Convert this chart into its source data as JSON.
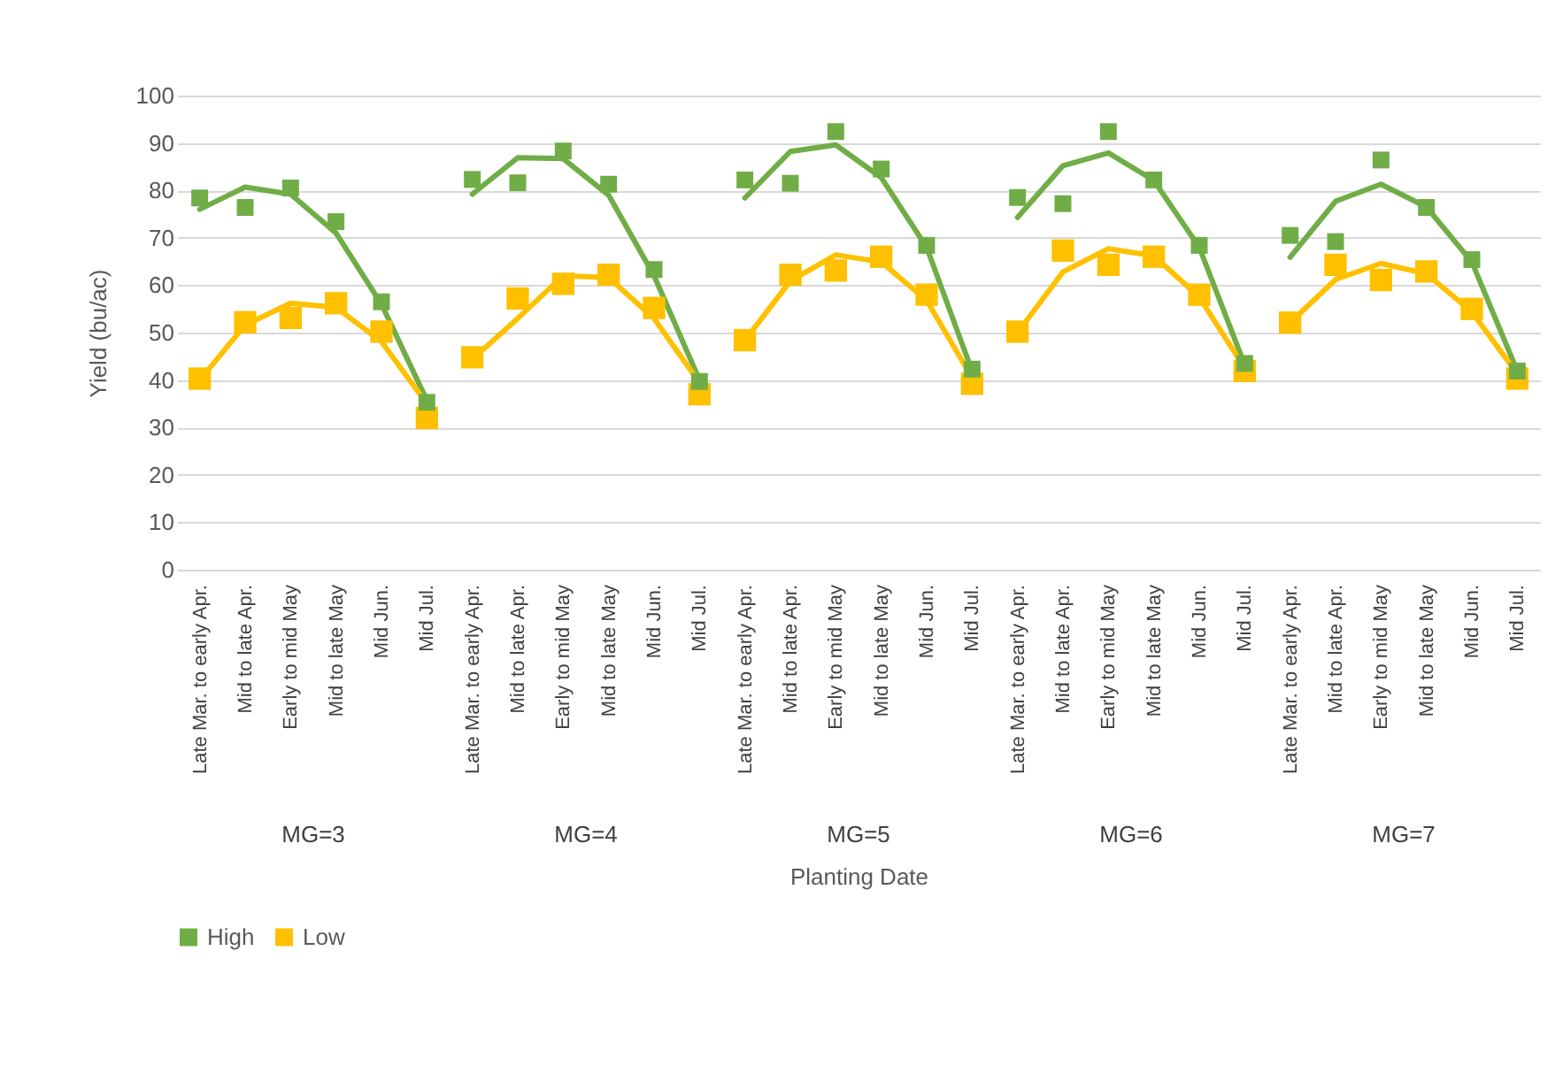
{
  "chart_data": {
    "type": "scatter",
    "xlabel": "Planting Date",
    "ylabel": "Yield (bu/ac)",
    "categories": [
      "Late Mar. to early Apr.",
      "Mid to late Apr.",
      "Early to mid May",
      "Mid to late May",
      "Mid Jun.",
      "Mid Jul.",
      "Late Mar. to early Apr.",
      "Mid to late Apr.",
      "Early to mid May",
      "Mid to late May",
      "Mid Jun.",
      "Mid Jul.",
      "Late Mar. to early Apr.",
      "Mid to late Apr.",
      "Early to mid May",
      "Mid to late May",
      "Mid Jun.",
      "Mid Jul.",
      "Late Mar. to early Apr.",
      "Mid to late Apr.",
      "Early to mid May",
      "Mid to late May",
      "Mid Jun.",
      "Mid Jul.",
      "Late Mar. to early Apr.",
      "Mid to late Apr.",
      "Early to mid May",
      "Mid to late May",
      "Mid Jun.",
      "Mid Jul."
    ],
    "annotations": [
      "MG=3",
      "MG=4",
      "MG=5",
      "MG=6",
      "MG=7"
    ],
    "series": [
      {
        "type": "line",
        "marker": "none",
        "color": "#70ad47",
        "values": [
          76,
          80.7,
          79.2,
          71,
          56,
          35.7,
          null,
          null,
          null,
          null,
          null,
          null,
          null,
          null,
          null,
          null,
          null,
          null,
          null,
          null,
          null,
          null,
          null,
          null,
          null,
          null,
          null,
          null,
          null,
          null
        ]
      },
      {
        "type": "line",
        "marker": "none",
        "color": "#70ad47",
        "values": [
          null,
          null,
          null,
          null,
          null,
          null,
          79.2,
          86.9,
          86.7,
          79,
          62,
          40,
          null,
          null,
          null,
          null,
          null,
          null,
          null,
          null,
          null,
          null,
          null,
          null,
          null,
          null,
          null,
          null,
          null,
          null
        ]
      },
      {
        "type": "line",
        "marker": "none",
        "color": "#70ad47",
        "values": [
          null,
          null,
          null,
          null,
          null,
          null,
          null,
          null,
          null,
          null,
          null,
          null,
          78.4,
          88.2,
          89.6,
          82.7,
          68,
          41.9,
          null,
          null,
          null,
          null,
          null,
          null,
          null,
          null,
          null,
          null,
          null,
          null
        ]
      },
      {
        "type": "line",
        "marker": "none",
        "color": "#70ad47",
        "values": [
          null,
          null,
          null,
          null,
          null,
          null,
          null,
          null,
          null,
          null,
          null,
          null,
          null,
          null,
          null,
          null,
          null,
          null,
          74.3,
          85.2,
          87.9,
          82.1,
          68,
          43.2,
          null,
          null,
          null,
          null,
          null,
          null
        ]
      },
      {
        "type": "line",
        "marker": "none",
        "color": "#70ad47",
        "values": [
          null,
          null,
          null,
          null,
          null,
          null,
          null,
          null,
          null,
          null,
          null,
          null,
          null,
          null,
          null,
          null,
          null,
          null,
          null,
          null,
          null,
          null,
          null,
          null,
          65.9,
          77.7,
          81.3,
          76.5,
          64.9,
          41.9
        ]
      },
      {
        "type": "line",
        "marker": "none",
        "color": "#ffc000",
        "values": [
          40,
          51.6,
          56.2,
          55.3,
          48.1,
          35,
          null,
          null,
          null,
          null,
          null,
          null,
          null,
          null,
          null,
          null,
          null,
          null,
          null,
          null,
          null,
          null,
          null,
          null,
          null,
          null,
          null,
          null,
          null,
          null
        ]
      },
      {
        "type": "line",
        "marker": "none",
        "color": "#ffc000",
        "values": [
          null,
          null,
          null,
          null,
          null,
          null,
          44.4,
          53,
          62,
          61.6,
          53,
          39.4,
          null,
          null,
          null,
          null,
          null,
          null,
          null,
          null,
          null,
          null,
          null,
          null,
          null,
          null,
          null,
          null,
          null,
          null
        ]
      },
      {
        "type": "line",
        "marker": "none",
        "color": "#ffc000",
        "values": [
          null,
          null,
          null,
          null,
          null,
          null,
          null,
          null,
          null,
          null,
          null,
          null,
          48.4,
          60.9,
          66.4,
          64.9,
          56.8,
          40.5,
          null,
          null,
          null,
          null,
          null,
          null,
          null,
          null,
          null,
          null,
          null,
          null
        ]
      },
      {
        "type": "line",
        "marker": "none",
        "color": "#ffc000",
        "values": [
          null,
          null,
          null,
          null,
          null,
          null,
          null,
          null,
          null,
          null,
          null,
          null,
          null,
          null,
          null,
          null,
          null,
          null,
          50,
          62.8,
          67.7,
          66.2,
          57.5,
          42.5,
          null,
          null,
          null,
          null,
          null,
          null
        ]
      },
      {
        "type": "line",
        "marker": "none",
        "color": "#ffc000",
        "values": [
          null,
          null,
          null,
          null,
          null,
          null,
          null,
          null,
          null,
          null,
          null,
          null,
          null,
          null,
          null,
          null,
          null,
          null,
          null,
          null,
          null,
          null,
          null,
          null,
          52.1,
          61.2,
          64.6,
          62.4,
          54.4,
          41.3
        ]
      },
      {
        "name": "High",
        "color": "#70ad47",
        "values": [
          78.4,
          76.4,
          80.5,
          73.4,
          56.5,
          35.3,
          82.3,
          81.6,
          88.3,
          81.3,
          63.3,
          39.7,
          82.2,
          81.5,
          92.4,
          84.5,
          68.4,
          42.3,
          78.5,
          77.2,
          92.4,
          82.2,
          68.4,
          43.5,
          70.5,
          69.2,
          86.4,
          76.4,
          65.4,
          41.9
        ]
      },
      {
        "name": "Low",
        "color": "#ffc000",
        "values": [
          40.3,
          52.2,
          53.1,
          56.2,
          50.2,
          32,
          44.8,
          57.2,
          60.3,
          62.2,
          55.2,
          37,
          48.4,
          62.2,
          63.1,
          66,
          58,
          39.2,
          50.2,
          67.3,
          64.3,
          66,
          58,
          41.9,
          52.1,
          64.3,
          61.1,
          62.9,
          55,
          40.3
        ]
      }
    ],
    "ylim": [
      0,
      100
    ],
    "yticks": [
      0,
      10,
      20,
      30,
      40,
      50,
      60,
      70,
      80,
      90,
      100
    ],
    "grid": "y",
    "legend": "bottom",
    "marker": "square",
    "line_style": "solid"
  }
}
